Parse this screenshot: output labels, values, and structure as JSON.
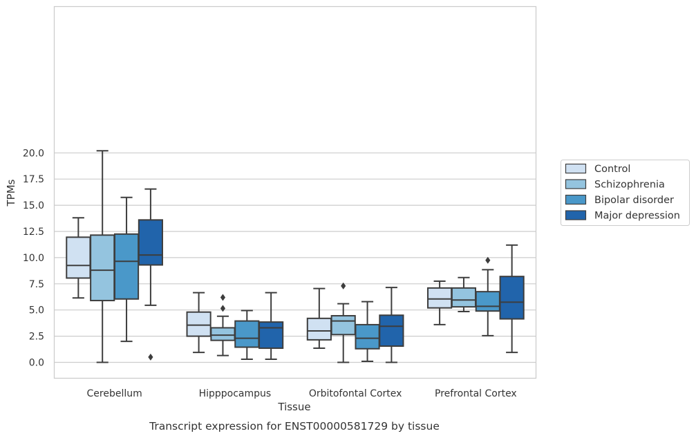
{
  "chart_data": {
    "type": "box",
    "title": "",
    "caption": "Transcript expression for ENST00000581729 by tissue",
    "xlabel": "Tissue",
    "ylabel": "TPMs",
    "ylim": [
      -1.0,
      21.3
    ],
    "yticks": [
      0.0,
      2.5,
      5.0,
      7.5,
      10.0,
      12.5,
      15.0,
      17.5,
      20.0
    ],
    "ytick_labels": [
      "0.0",
      "2.5",
      "5.0",
      "7.5",
      "10.0",
      "12.5",
      "15.0",
      "17.5",
      "20.0"
    ],
    "grid": "horizontal",
    "legend_position": "right",
    "categories": [
      "Cerebellum",
      "Hipppocampus",
      "Orbitofontal Cortex",
      "Prefrontal Cortex"
    ],
    "series": [
      {
        "name": "Control",
        "color": "#d0e1f2",
        "boxes": [
          {
            "whislo": 6.15,
            "q1": 8.05,
            "med": 9.25,
            "q3": 11.95,
            "whishi": 13.8,
            "fliers": []
          },
          {
            "whislo": 0.95,
            "q1": 2.5,
            "med": 3.55,
            "q3": 4.8,
            "whishi": 6.65,
            "fliers": []
          },
          {
            "whislo": 1.35,
            "q1": 2.15,
            "med": 3.0,
            "q3": 4.2,
            "whishi": 7.05,
            "fliers": []
          },
          {
            "whislo": 3.6,
            "q1": 5.2,
            "med": 6.05,
            "q3": 7.1,
            "whishi": 7.75,
            "fliers": []
          }
        ]
      },
      {
        "name": "Schizophrenia",
        "color": "#94c4df",
        "boxes": [
          {
            "whislo": 0.0,
            "q1": 5.9,
            "med": 8.8,
            "q3": 12.15,
            "whishi": 20.2,
            "fliers": []
          },
          {
            "whislo": 0.65,
            "q1": 2.1,
            "med": 2.6,
            "q3": 3.3,
            "whishi": 4.4,
            "fliers": [
              5.15,
              6.2
            ]
          },
          {
            "whislo": 0.0,
            "q1": 2.65,
            "med": 3.95,
            "q3": 4.45,
            "whishi": 5.6,
            "fliers": [
              7.3
            ]
          },
          {
            "whislo": 4.85,
            "q1": 5.3,
            "med": 5.95,
            "q3": 7.1,
            "whishi": 8.1,
            "fliers": []
          }
        ]
      },
      {
        "name": "Bipolar disorder",
        "color": "#4a98c9",
        "boxes": [
          {
            "whislo": 2.0,
            "q1": 6.05,
            "med": 9.65,
            "q3": 12.25,
            "whishi": 15.75,
            "fliers": []
          },
          {
            "whislo": 0.3,
            "q1": 1.45,
            "med": 2.3,
            "q3": 3.95,
            "whishi": 4.95,
            "fliers": []
          },
          {
            "whislo": 0.1,
            "q1": 1.3,
            "med": 2.3,
            "q3": 3.6,
            "whishi": 5.8,
            "fliers": []
          },
          {
            "whislo": 2.55,
            "q1": 4.9,
            "med": 5.35,
            "q3": 6.75,
            "whishi": 8.85,
            "fliers": [
              9.75
            ]
          }
        ]
      },
      {
        "name": "Major depression",
        "color": "#2164ab",
        "boxes": [
          {
            "whislo": 5.45,
            "q1": 9.3,
            "med": 10.25,
            "q3": 13.6,
            "whishi": 16.55,
            "fliers": [
              0.5
            ]
          },
          {
            "whislo": 0.3,
            "q1": 1.35,
            "med": 3.3,
            "q3": 3.85,
            "whishi": 6.65,
            "fliers": []
          },
          {
            "whislo": 0.0,
            "q1": 1.55,
            "med": 3.45,
            "q3": 4.5,
            "whishi": 7.15,
            "fliers": []
          },
          {
            "whislo": 0.95,
            "q1": 4.15,
            "med": 5.75,
            "q3": 8.2,
            "whishi": 11.2,
            "fliers": []
          }
        ]
      }
    ]
  }
}
